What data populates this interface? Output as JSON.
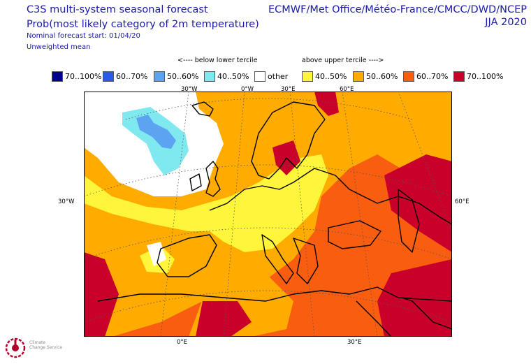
{
  "header": {
    "title_line1": "C3S multi-system seasonal forecast",
    "title_line2": "Prob(most likely category of 2m temperature)",
    "nominal_start": "Nominal forecast start: 01/04/20",
    "mean_type": "Unweighted mean",
    "centres": "ECMWF/Met Office/Météo-France/CMCC/DWD/NCEP",
    "season": "JJA 2020"
  },
  "legend": {
    "below_label": "<---- below lower tercile",
    "above_label": "above upper tercile ---->",
    "items": [
      {
        "label": "70..100%",
        "color": "#00008c"
      },
      {
        "label": "60..70%",
        "color": "#2a5be6"
      },
      {
        "label": "50..60%",
        "color": "#5ca4f2"
      },
      {
        "label": "40..50%",
        "color": "#7fe9ef"
      },
      {
        "label": "other",
        "color": "#ffffff"
      },
      {
        "label": "40..50%",
        "color": "#fff53a"
      },
      {
        "label": "50..60%",
        "color": "#ffab00"
      },
      {
        "label": "60..70%",
        "color": "#f95d10"
      },
      {
        "label": "70..100%",
        "color": "#c8002a"
      }
    ]
  },
  "map": {
    "top_ticks": [
      "30°W",
      "0°W",
      "30°E",
      "60°E"
    ],
    "bottom_ticks": [
      "0°E",
      "30°E"
    ],
    "left_tick": "30°W",
    "right_tick": "60°E"
  },
  "logo": {
    "icon": "climate-change-service-logo-icon",
    "text_line1": "Climate",
    "text_line2": "Change Service"
  }
}
